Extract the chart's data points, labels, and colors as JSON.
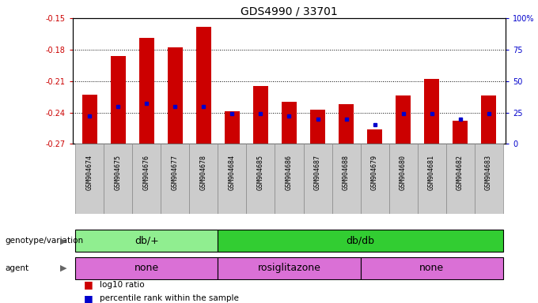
{
  "title": "GDS4990 / 33701",
  "samples": [
    "GSM904674",
    "GSM904675",
    "GSM904676",
    "GSM904677",
    "GSM904678",
    "GSM904684",
    "GSM904685",
    "GSM904686",
    "GSM904687",
    "GSM904688",
    "GSM904679",
    "GSM904680",
    "GSM904681",
    "GSM904682",
    "GSM904683"
  ],
  "log10_ratio": [
    -0.223,
    -0.186,
    -0.169,
    -0.178,
    -0.158,
    -0.239,
    -0.215,
    -0.23,
    -0.237,
    -0.232,
    -0.256,
    -0.224,
    -0.208,
    -0.248,
    -0.224
  ],
  "percentile": [
    22,
    30,
    32,
    30,
    30,
    24,
    24,
    22,
    20,
    20,
    15,
    24,
    24,
    20,
    24
  ],
  "ylim_left": [
    -0.27,
    -0.15
  ],
  "yticks_left": [
    -0.27,
    -0.24,
    -0.21,
    -0.18,
    -0.15
  ],
  "ylim_right": [
    0,
    100
  ],
  "yticks_right": [
    0,
    25,
    50,
    75,
    100
  ],
  "yticklabels_right": [
    "0",
    "25",
    "50",
    "75",
    "100%"
  ],
  "bar_color": "#cc0000",
  "dot_color": "#0000cc",
  "bar_bottom": -0.27,
  "genotype_groups": [
    {
      "label": "db/+",
      "start": 0,
      "end": 5,
      "color": "#90ee90"
    },
    {
      "label": "db/db",
      "start": 5,
      "end": 15,
      "color": "#32cd32"
    }
  ],
  "agent_groups": [
    {
      "label": "none",
      "start": 0,
      "end": 5,
      "color": "#da70d6"
    },
    {
      "label": "rosiglitazone",
      "start": 5,
      "end": 10,
      "color": "#da70d6"
    },
    {
      "label": "none",
      "start": 10,
      "end": 15,
      "color": "#da70d6"
    }
  ],
  "legend_red_label": "log10 ratio",
  "legend_blue_label": "percentile rank within the sample",
  "genotype_label": "genotype/variation",
  "agent_label": "agent",
  "bar_color_hex": "#cc0000",
  "dot_color_hex": "#0000cc",
  "title_fontsize": 10,
  "tick_fontsize": 7,
  "label_fontsize": 8,
  "sample_fontsize": 6
}
